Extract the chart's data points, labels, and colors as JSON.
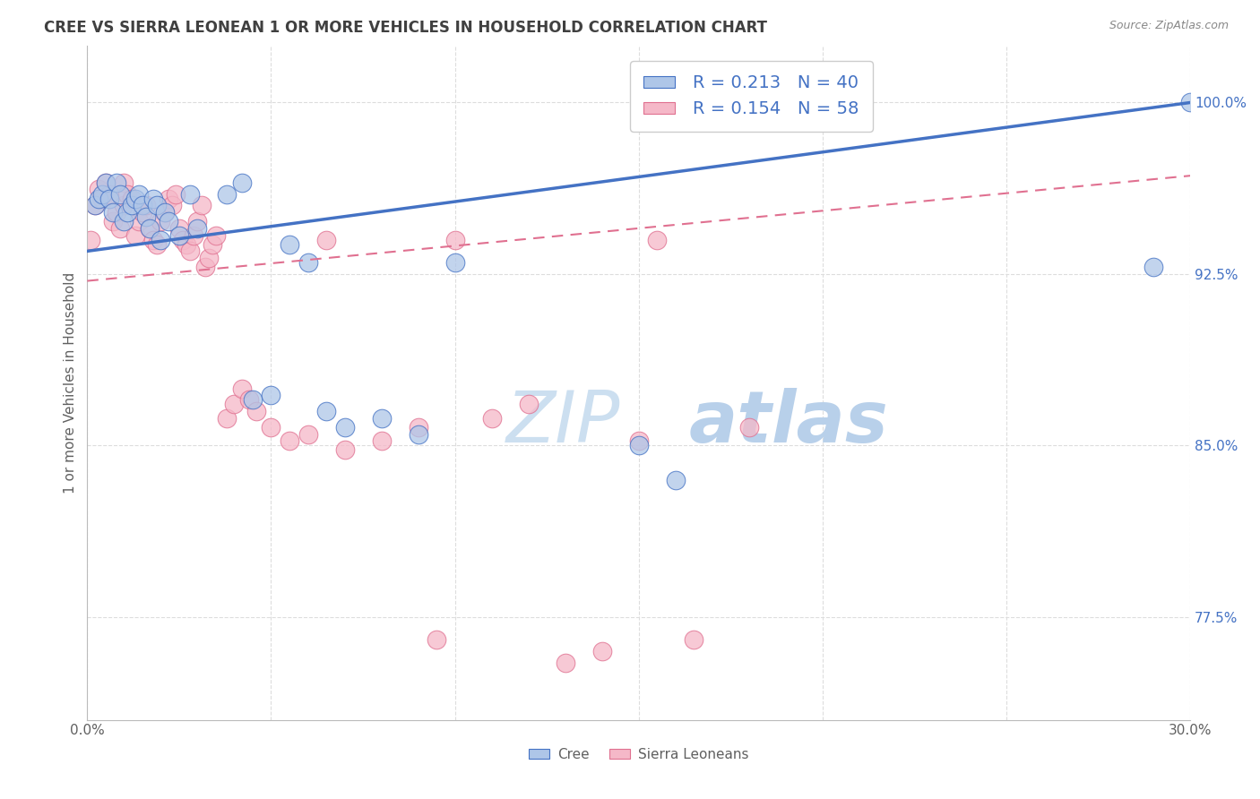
{
  "title": "CREE VS SIERRA LEONEAN 1 OR MORE VEHICLES IN HOUSEHOLD CORRELATION CHART",
  "source": "Source: ZipAtlas.com",
  "ylabel": "1 or more Vehicles in Household",
  "ytick_labels": [
    "100.0%",
    "92.5%",
    "85.0%",
    "77.5%"
  ],
  "ytick_values": [
    1.0,
    0.925,
    0.85,
    0.775
  ],
  "cree_color": "#aec6e8",
  "cree_edge_color": "#4472c4",
  "sl_color": "#f5b8c8",
  "sl_edge_color": "#e07090",
  "cree_line_color": "#4472c4",
  "sl_line_color": "#e07090",
  "title_color": "#404040",
  "source_color": "#888888",
  "axis_label_color": "#606060",
  "ytick_color": "#4472c4",
  "xtick_color": "#606060",
  "background_color": "#ffffff",
  "grid_color": "#dddddd",
  "xlim": [
    0.0,
    0.3
  ],
  "ylim": [
    0.73,
    1.025
  ],
  "cree_trend": [
    0.0,
    0.935,
    0.3,
    1.0
  ],
  "sl_trend": [
    0.0,
    0.922,
    0.3,
    0.968
  ],
  "cree_scatter_x": [
    0.002,
    0.003,
    0.004,
    0.005,
    0.006,
    0.007,
    0.008,
    0.009,
    0.01,
    0.011,
    0.012,
    0.013,
    0.014,
    0.015,
    0.016,
    0.017,
    0.018,
    0.019,
    0.02,
    0.021,
    0.022,
    0.025,
    0.028,
    0.03,
    0.038,
    0.042,
    0.045,
    0.05,
    0.055,
    0.06,
    0.065,
    0.07,
    0.08,
    0.09,
    0.1,
    0.15,
    0.16,
    0.29,
    0.3
  ],
  "cree_scatter_y": [
    0.955,
    0.958,
    0.96,
    0.965,
    0.958,
    0.952,
    0.965,
    0.96,
    0.948,
    0.952,
    0.955,
    0.958,
    0.96,
    0.955,
    0.95,
    0.945,
    0.958,
    0.955,
    0.94,
    0.952,
    0.948,
    0.942,
    0.96,
    0.945,
    0.96,
    0.965,
    0.87,
    0.872,
    0.938,
    0.93,
    0.865,
    0.858,
    0.862,
    0.855,
    0.93,
    0.85,
    0.835,
    0.928,
    1.0
  ],
  "sl_scatter_x": [
    0.001,
    0.002,
    0.003,
    0.004,
    0.005,
    0.006,
    0.007,
    0.008,
    0.009,
    0.01,
    0.01,
    0.011,
    0.012,
    0.013,
    0.014,
    0.015,
    0.016,
    0.017,
    0.018,
    0.019,
    0.02,
    0.021,
    0.022,
    0.023,
    0.024,
    0.025,
    0.026,
    0.027,
    0.028,
    0.029,
    0.03,
    0.031,
    0.032,
    0.033,
    0.034,
    0.035,
    0.038,
    0.04,
    0.042,
    0.044,
    0.046,
    0.05,
    0.055,
    0.06,
    0.065,
    0.07,
    0.08,
    0.09,
    0.095,
    0.1,
    0.11,
    0.12,
    0.13,
    0.14,
    0.15,
    0.155,
    0.165,
    0.18
  ],
  "sl_scatter_y": [
    0.94,
    0.955,
    0.962,
    0.958,
    0.965,
    0.96,
    0.948,
    0.952,
    0.945,
    0.965,
    0.955,
    0.96,
    0.958,
    0.942,
    0.948,
    0.952,
    0.955,
    0.945,
    0.94,
    0.938,
    0.948,
    0.952,
    0.958,
    0.955,
    0.96,
    0.945,
    0.94,
    0.938,
    0.935,
    0.942,
    0.948,
    0.955,
    0.928,
    0.932,
    0.938,
    0.942,
    0.862,
    0.868,
    0.875,
    0.87,
    0.865,
    0.858,
    0.852,
    0.855,
    0.94,
    0.848,
    0.852,
    0.858,
    0.765,
    0.94,
    0.862,
    0.868,
    0.755,
    0.76,
    0.852,
    0.94,
    0.765,
    0.858
  ]
}
